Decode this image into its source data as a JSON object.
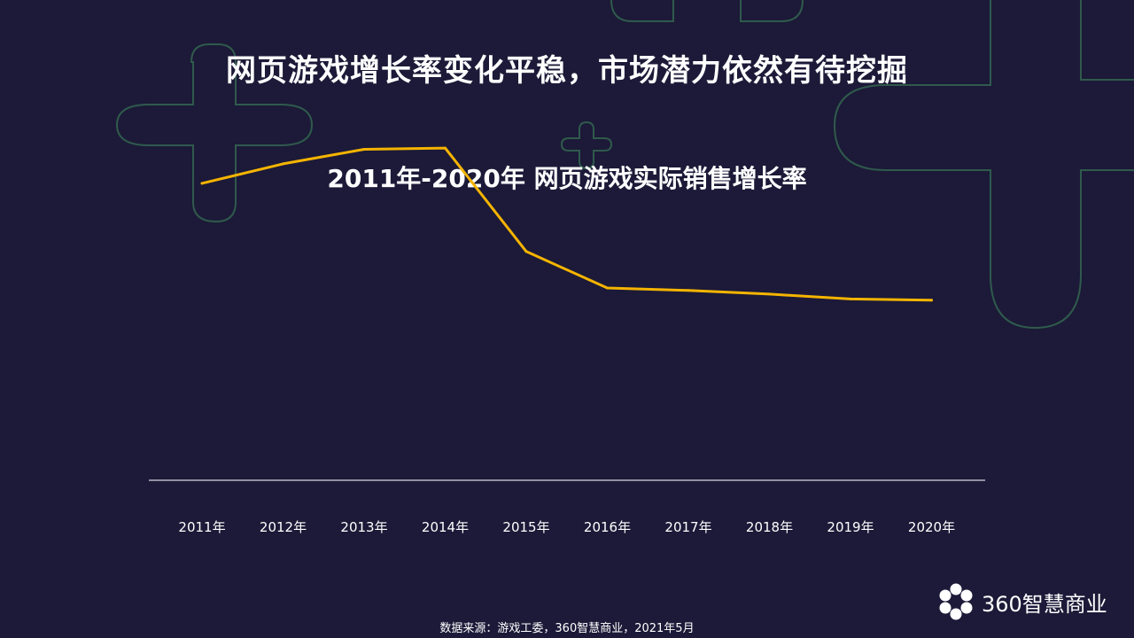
{
  "header": {
    "title": "网页游戏增长率变化平稳，市场潜力依然有待挖掘"
  },
  "chart_data": {
    "type": "line",
    "title": "2011年-2020年 网页游戏实际销售增长率",
    "categories": [
      "2011年",
      "2012年",
      "2013年",
      "2014年",
      "2015年",
      "2016年",
      "2017年",
      "2018年",
      "2019年",
      "2020年"
    ],
    "series": [
      {
        "values": [
          0.72,
          0.8,
          0.86,
          0.865,
          0.44,
          0.29,
          0.28,
          0.265,
          0.245,
          0.24
        ]
      }
    ],
    "ylim": [
      -0.5,
      1
    ],
    "line_color": "#f5b400",
    "axis_color": "#b8b8c8",
    "grid": false,
    "legend": "none"
  },
  "footer": {
    "source": "数据来源：游戏工委，360智慧商业，2021年5月"
  },
  "logo": {
    "text": "360智慧商业",
    "icon": "360-flower-logo-icon"
  },
  "colors": {
    "background": "#1c1a38",
    "decoration": "#2f5a4c"
  }
}
